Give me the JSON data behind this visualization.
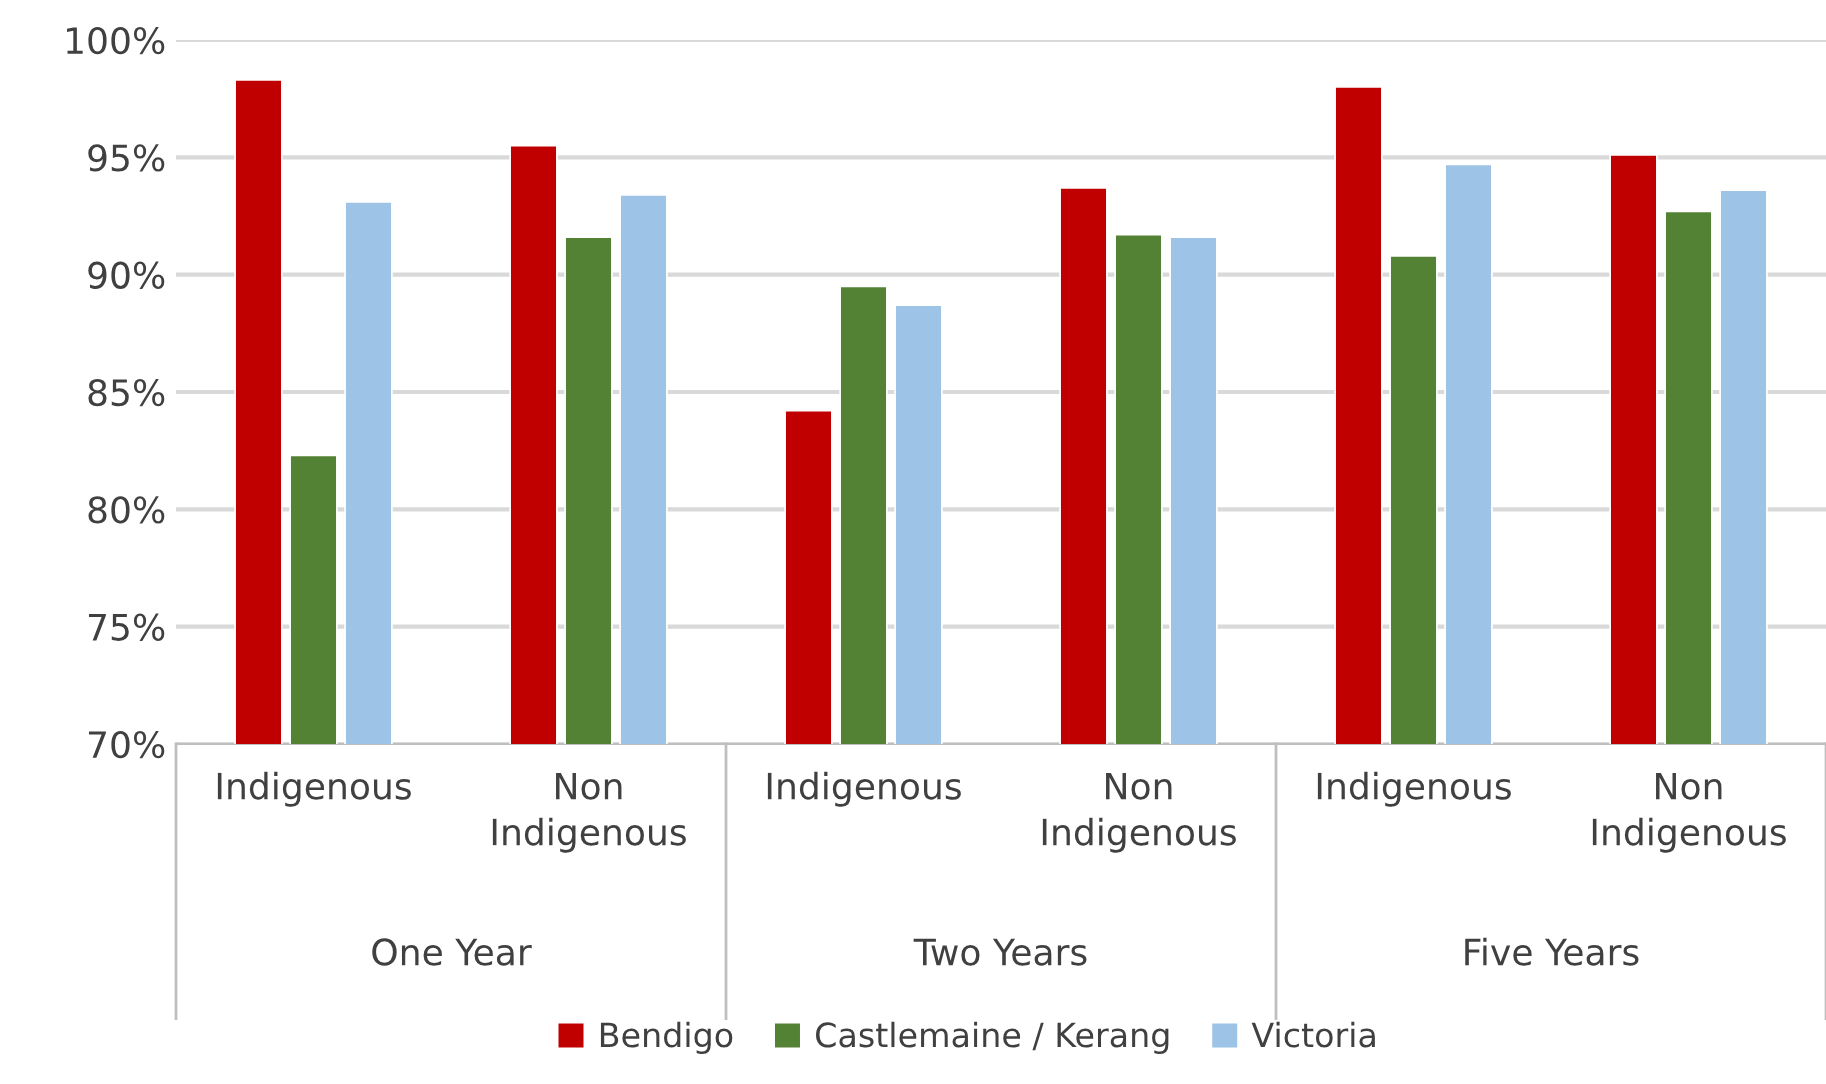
{
  "chart_data": {
    "type": "bar",
    "categories": [
      "Indigenous",
      "Non\nIndigenous",
      "Indigenous",
      "Non\nIndigenous",
      "Indigenous",
      "Non\nIndigenous"
    ],
    "annotations": [
      "One Year",
      "Two Years",
      "Five Years"
    ],
    "series": [
      {
        "name": "Bendigo",
        "color": "#c00000",
        "values": [
          98.3,
          95.5,
          84.2,
          93.7,
          98.0,
          95.1
        ]
      },
      {
        "name": "Castlemaine / Kerang",
        "color": "#548235",
        "values": [
          82.3,
          91.6,
          89.5,
          91.7,
          90.8,
          92.7
        ]
      },
      {
        "name": "Victoria",
        "color": "#9dc3e6",
        "values": [
          93.1,
          93.4,
          88.7,
          91.6,
          94.7,
          93.6
        ]
      }
    ],
    "ylim": [
      70,
      100
    ],
    "yticks": [
      {
        "value": 70,
        "label": "70%"
      },
      {
        "value": 75,
        "label": "75%"
      },
      {
        "value": 80,
        "label": "80%"
      },
      {
        "value": 85,
        "label": "85%"
      },
      {
        "value": 90,
        "label": "90%"
      },
      {
        "value": 95,
        "label": "95%"
      },
      {
        "value": 100,
        "label": "100%"
      }
    ],
    "grid": "y",
    "legend": "bottom"
  }
}
